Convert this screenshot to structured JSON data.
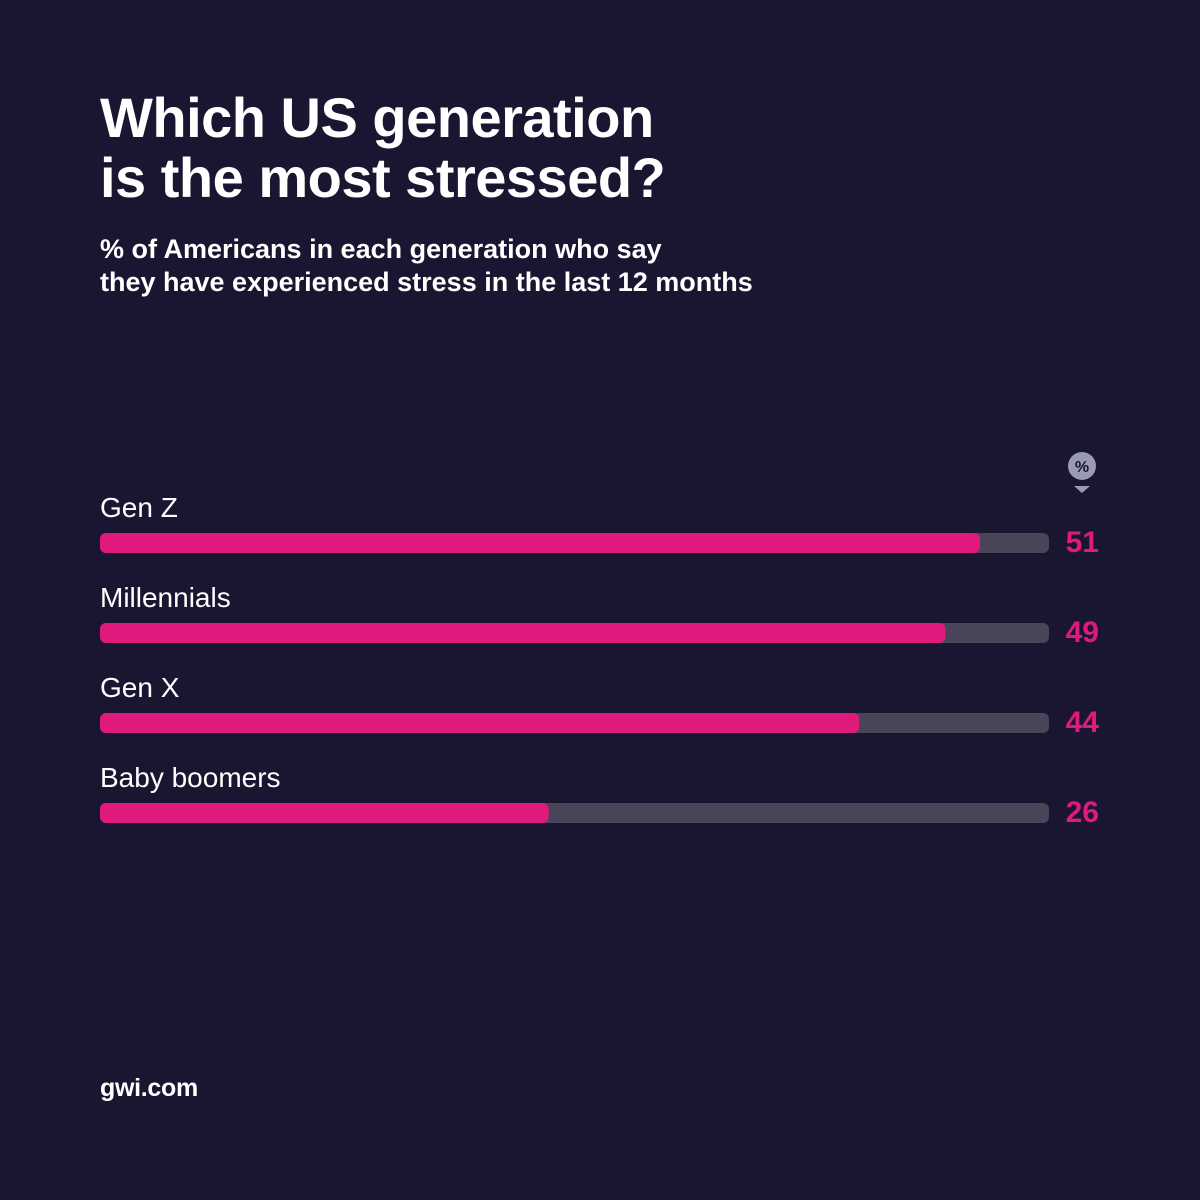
{
  "colors": {
    "background": "#1a1530",
    "bar_fill": "#e0197d",
    "bar_track": "#4a4458",
    "value_text": "#e0197d",
    "text": "#ffffff",
    "unit_badge": "#9a9bb3"
  },
  "header": {
    "title_line1": "Which US generation",
    "title_line2": "is the most stressed?",
    "subtitle_line1": "% of Americans in each generation who say",
    "subtitle_line2": "they have experienced stress in the last 12 months"
  },
  "unit_badge": {
    "label": "%",
    "icon": "percent-pin-icon"
  },
  "chart_data": {
    "type": "bar",
    "orientation": "horizontal",
    "title": "Which US generation is the most stressed?",
    "subtitle": "% of Americans in each generation who say they have experienced stress in the last 12 months",
    "unit": "%",
    "categories": [
      "Gen Z",
      "Millennials",
      "Gen X",
      "Baby boomers"
    ],
    "values": [
      51,
      49,
      44,
      26
    ],
    "xlim": [
      0,
      55
    ],
    "grid": false,
    "legend": "none"
  },
  "footer": {
    "source": "gwi.com"
  }
}
